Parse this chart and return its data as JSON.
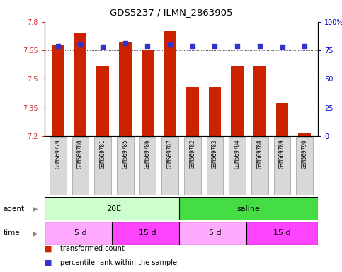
{
  "title": "GDS5237 / ILMN_2863905",
  "samples": [
    "GSM569779",
    "GSM569780",
    "GSM569781",
    "GSM569785",
    "GSM569786",
    "GSM569787",
    "GSM569782",
    "GSM569783",
    "GSM569784",
    "GSM569788",
    "GSM569789",
    "GSM569790"
  ],
  "bar_values": [
    7.68,
    7.74,
    7.57,
    7.69,
    7.655,
    7.75,
    7.455,
    7.455,
    7.57,
    7.57,
    7.37,
    7.215
  ],
  "percentile_values": [
    79,
    80,
    78,
    81,
    79,
    80,
    79,
    79,
    79,
    79,
    78,
    79
  ],
  "bar_color": "#cc2200",
  "percentile_color": "#3333cc",
  "ylim_left": [
    7.2,
    7.8
  ],
  "ylim_right": [
    0,
    100
  ],
  "yticks_left": [
    7.2,
    7.35,
    7.5,
    7.65,
    7.8
  ],
  "yticks_right": [
    0,
    25,
    50,
    75,
    100
  ],
  "grid_lines": [
    7.35,
    7.5,
    7.65
  ],
  "agent_labels": [
    {
      "text": "20E",
      "start": 0,
      "end": 6,
      "color": "#ccffcc"
    },
    {
      "text": "saline",
      "start": 6,
      "end": 12,
      "color": "#44dd44"
    }
  ],
  "time_labels": [
    {
      "text": "5 d",
      "start": 0,
      "end": 3,
      "color": "#ffaaff"
    },
    {
      "text": "15 d",
      "start": 3,
      "end": 6,
      "color": "#ff44ff"
    },
    {
      "text": "5 d",
      "start": 6,
      "end": 9,
      "color": "#ffaaff"
    },
    {
      "text": "15 d",
      "start": 9,
      "end": 12,
      "color": "#ff44ff"
    }
  ],
  "legend_items": [
    {
      "label": "transformed count",
      "color": "#cc2200"
    },
    {
      "label": "percentile rank within the sample",
      "color": "#3333cc"
    }
  ],
  "background_color": "#ffffff",
  "tick_label_color_left": "#cc3333",
  "tick_label_color_right": "#0000cc",
  "xticklabel_bg": "#d8d8d8"
}
